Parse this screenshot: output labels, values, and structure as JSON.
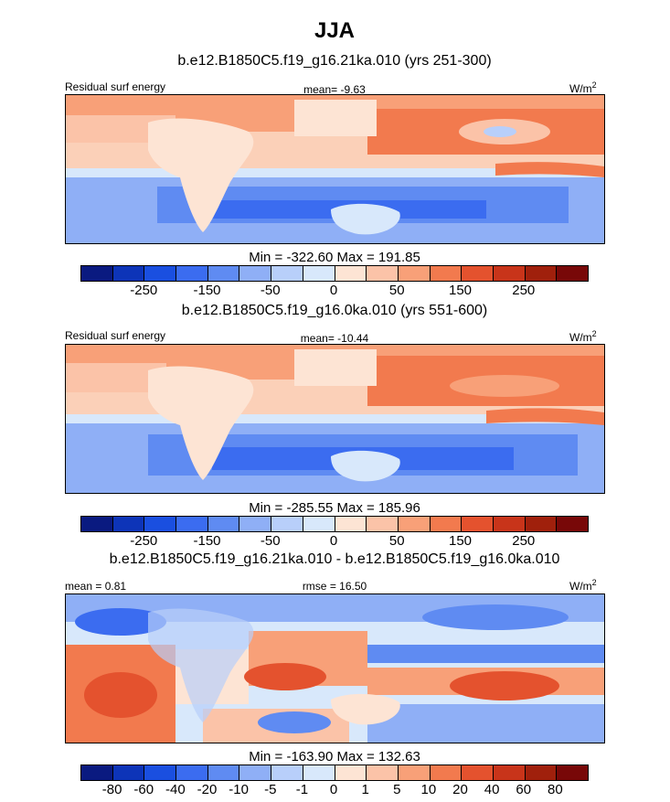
{
  "header": {
    "season": "JJA"
  },
  "colors": {
    "panel1_palette": [
      "#0a1a80",
      "#0d34b8",
      "#1a4fe0",
      "#3b6cf0",
      "#5f8bf2",
      "#8faff6",
      "#b8cffa",
      "#d8e8fb",
      "#fde4d4",
      "#fbc3a8",
      "#f8a078",
      "#f27a4e",
      "#e4522e",
      "#c8341a",
      "#a0200c",
      "#780808"
    ],
    "panel3_palette": [
      "#0a1a80",
      "#0d34b8",
      "#1a4fe0",
      "#3b6cf0",
      "#5f8bf2",
      "#8faff6",
      "#b8cffa",
      "#d8e8fb",
      "#fde4d4",
      "#fbc3a8",
      "#f8a078",
      "#f27a4e",
      "#e4522e",
      "#c8341a",
      "#a0200c",
      "#780808"
    ]
  },
  "panels": [
    {
      "case_title": "b.e12.B1850C5.f19_g16.21ka.010 (yrs 251-300)",
      "left_label": "Residual surf energy",
      "center_label": "mean=  -9.63",
      "units": "W/m",
      "units_sup": "2",
      "minmax": "Min = -322.60 Max = 191.85",
      "colorbar_ticks": [
        "-250",
        "-150",
        "-50",
        "0",
        "50",
        "150",
        "250"
      ]
    },
    {
      "case_title": "b.e12.B1850C5.f19_g16.0ka.010 (yrs 551-600)",
      "left_label": "Residual surf energy",
      "center_label": "mean= -10.44",
      "units": "W/m",
      "units_sup": "2",
      "minmax": "Min = -285.55 Max = 185.96",
      "colorbar_ticks": [
        "-250",
        "-150",
        "-50",
        "0",
        "50",
        "150",
        "250"
      ]
    },
    {
      "case_title": "b.e12.B1850C5.f19_g16.21ka.010 - b.e12.B1850C5.f19_g16.0ka.010",
      "left_label": "mean =   0.81",
      "center_label": "rmse =  16.50",
      "units": "W/m",
      "units_sup": "2",
      "minmax": "Min = -163.90 Max = 132.63",
      "colorbar_ticks": [
        "-80",
        "-60",
        "-40",
        "-20",
        "-10",
        "-5",
        "-1",
        "0",
        "1",
        "5",
        "10",
        "20",
        "40",
        "60",
        "80"
      ]
    }
  ],
  "chart_data": [
    {
      "type": "heatmap",
      "title": "b.e12.B1850C5.f19_g16.21ka.010 (yrs 251-300)",
      "variable": "Residual surf energy",
      "units": "W/m2",
      "mean": -9.63,
      "min": -322.6,
      "max": 191.85,
      "levels": [
        -300,
        -250,
        -200,
        -150,
        -100,
        -50,
        -25,
        0,
        25,
        50,
        100,
        150,
        200,
        250,
        300
      ],
      "colorbar_labels": [
        -250,
        -150,
        -50,
        0,
        50,
        150,
        250
      ]
    },
    {
      "type": "heatmap",
      "title": "b.e12.B1850C5.f19_g16.0ka.010 (yrs 551-600)",
      "variable": "Residual surf energy",
      "units": "W/m2",
      "mean": -10.44,
      "min": -285.55,
      "max": 185.96,
      "levels": [
        -300,
        -250,
        -200,
        -150,
        -100,
        -50,
        -25,
        0,
        25,
        50,
        100,
        150,
        200,
        250,
        300
      ],
      "colorbar_labels": [
        -250,
        -150,
        -50,
        0,
        50,
        150,
        250
      ]
    },
    {
      "type": "heatmap",
      "title": "b.e12.B1850C5.f19_g16.21ka.010 - b.e12.B1850C5.f19_g16.0ka.010",
      "units": "W/m2",
      "mean": 0.81,
      "rmse": 16.5,
      "min": -163.9,
      "max": 132.63,
      "levels": [
        -80,
        -60,
        -40,
        -20,
        -10,
        -5,
        -1,
        0,
        1,
        5,
        10,
        20,
        40,
        60,
        80
      ],
      "colorbar_labels": [
        -80,
        -60,
        -40,
        -20,
        -10,
        -5,
        -1,
        0,
        1,
        5,
        10,
        20,
        40,
        60,
        80
      ]
    }
  ]
}
